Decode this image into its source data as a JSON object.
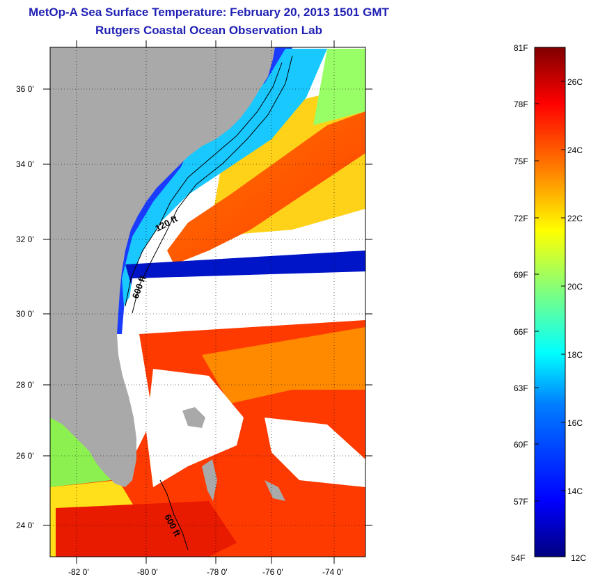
{
  "header": {
    "title": "MetOp-A Sea Surface Temperature:  February 20, 2013 1501 GMT",
    "subtitle": "Rutgers Coastal Ocean Observation Lab"
  },
  "map": {
    "lat_labels": [
      "36 0'",
      "34 0'",
      "32 0'",
      "30 0'",
      "28 0'",
      "26 0'",
      "24 0'"
    ],
    "lon_labels": [
      "-82 0'",
      "-80 0'",
      "-78 0'",
      "-76 0'",
      "-74 0'"
    ],
    "contour_labels": [
      "120 ft",
      "600 ft",
      "600 ft"
    ],
    "land_color": "#a9a9a9",
    "cloud_color": "#ffffff"
  },
  "colorbar": {
    "fahrenheit_labels": [
      "81F",
      "78F",
      "75F",
      "72F",
      "69F",
      "66F",
      "63F",
      "60F",
      "57F",
      "54F"
    ],
    "celsius_labels": [
      "26C",
      "24C",
      "22C",
      "20C",
      "18C",
      "16C",
      "14C",
      "12C"
    ],
    "colors": [
      "#00007f",
      "#0000ff",
      "#007fff",
      "#00ffff",
      "#7fff7f",
      "#ffff00",
      "#ff7f00",
      "#ff0000",
      "#7f0000"
    ]
  }
}
